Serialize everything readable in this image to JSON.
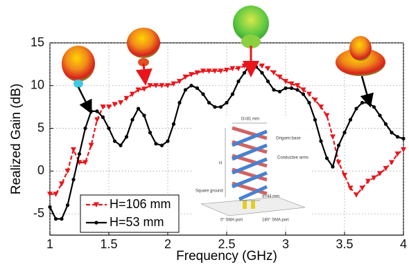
{
  "chart_data": {
    "type": "line",
    "x_label": "Frequency (GHz)",
    "y_label": "Realized Gain (dB)",
    "x": [
      1.0,
      1.05,
      1.1,
      1.15,
      1.2,
      1.25,
      1.3,
      1.35,
      1.4,
      1.45,
      1.5,
      1.55,
      1.6,
      1.65,
      1.7,
      1.75,
      1.8,
      1.85,
      1.9,
      1.95,
      2.0,
      2.05,
      2.1,
      2.15,
      2.2,
      2.25,
      2.3,
      2.35,
      2.4,
      2.45,
      2.5,
      2.55,
      2.6,
      2.65,
      2.7,
      2.75,
      2.8,
      2.85,
      2.9,
      2.95,
      3.0,
      3.05,
      3.1,
      3.15,
      3.2,
      3.25,
      3.3,
      3.35,
      3.4,
      3.45,
      3.5,
      3.55,
      3.6,
      3.65,
      3.7,
      3.75,
      3.8,
      3.85,
      3.9,
      3.95,
      4.0
    ],
    "series": [
      {
        "name": "H=106 mm",
        "color": "#e8161b",
        "marker": "triangle-down",
        "linestyle": "dashed",
        "values": [
          -2.7,
          -2.7,
          -1.5,
          0,
          2.5,
          1,
          1,
          3,
          6,
          7.5,
          7.5,
          7.8,
          8,
          8.5,
          9,
          9.5,
          9.6,
          10,
          10,
          10,
          10,
          10.2,
          10.5,
          11,
          11.3,
          11.5,
          11.7,
          11.7,
          11.7,
          11.7,
          11.8,
          12,
          12,
          12.3,
          12.5,
          12.5,
          12.3,
          12,
          11.5,
          11,
          10.5,
          10.2,
          10,
          9.5,
          9,
          8.3,
          7.5,
          6.5,
          4,
          1,
          -0.5,
          -2,
          -2.8,
          -2,
          -1.2,
          -0.8,
          -0.3,
          0.3,
          1,
          2,
          2.5
        ]
      },
      {
        "name": "H=53 mm",
        "color": "#000000",
        "marker": "circle",
        "linestyle": "solid",
        "values": [
          -4.2,
          -5.6,
          -5.6,
          -4,
          -1,
          2,
          5,
          7,
          7,
          6.3,
          5,
          3.5,
          3,
          4,
          6,
          7.3,
          6.5,
          4.5,
          3.2,
          3,
          3.5,
          5.5,
          8,
          9.5,
          10,
          9.7,
          9,
          8,
          7.5,
          7.5,
          8,
          9,
          10.5,
          11.5,
          12.5,
          12.2,
          11.5,
          10.5,
          9.5,
          9.3,
          9.7,
          9.7,
          9.5,
          9,
          8,
          6,
          3.5,
          1.5,
          0.5,
          3,
          4.5,
          6,
          7.3,
          8,
          8,
          7.5,
          6.5,
          5.5,
          4.5,
          4,
          3.8
        ]
      }
    ],
    "xlim": [
      1,
      4
    ],
    "xticks": [
      1,
      1.5,
      2,
      2.5,
      3,
      3.5,
      4
    ],
    "ylim": [
      -7.5,
      15
    ],
    "yticks": [
      -5,
      0,
      5,
      10,
      15
    ],
    "grid": true,
    "legend": "lower-left",
    "inset_labels": [
      "D=81 mm",
      "Origami base",
      "Conductive arms",
      "H",
      "Square ground",
      "d=44 mm",
      "0° SMA port",
      "180° SMA port"
    ]
  }
}
